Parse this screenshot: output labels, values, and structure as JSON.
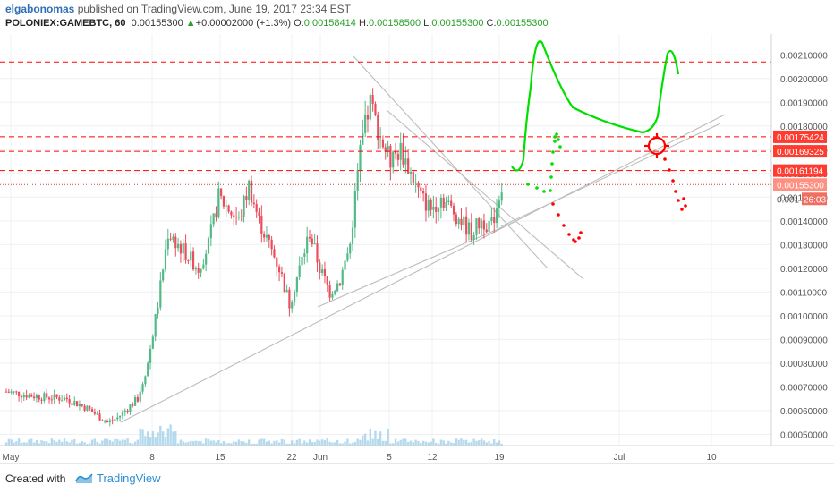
{
  "header": {
    "user": "elgabonomas",
    "published": " published on TradingView.com, June 19, 2017 23:34 EST",
    "symbol": "POLONIEX:GAMEBTC, 60",
    "last": "0.00155300",
    "change_arrow": "▲",
    "change": "+0.00002000 (+1.3%)",
    "o_label": "O:",
    "o_value": "0.00158414",
    "h_label": "H:",
    "h_value": "0.00158500",
    "l_label": "L:",
    "l_value": "0.00155300",
    "c_label": "C:",
    "c_value": "0.00155300"
  },
  "footer": {
    "created_with": "Created with",
    "brand": "TradingView"
  },
  "colors": {
    "up": "#53b987",
    "down": "#eb4d5c",
    "volume": "#a8d4ea",
    "annot_red": "#ff0000",
    "annot_green": "#00e000",
    "trendline": "#bdbdbd",
    "price_label_bg": "#ff3b30",
    "grid": "#eef0f3"
  },
  "chart_data": {
    "type": "candlestick",
    "title": "",
    "xlabel": "",
    "ylabel": "",
    "x_ticks": [
      "May",
      "8",
      "15",
      "22",
      "Jun",
      "5",
      "12",
      "19",
      "Jul",
      "10"
    ],
    "y_ticks": [
      "0.00210000",
      "0.00200000",
      "0.00190000",
      "0.00180000",
      "0.00170000",
      "0.00160000",
      "0.00150000",
      "0.00140000",
      "0.00130000",
      "0.00120000",
      "0.00110000",
      "0.00100000",
      "0.00090000",
      "0.00080000",
      "0.00070000",
      "0.00060000",
      "0.00050000"
    ],
    "ylim": [
      0.00043,
      0.00215
    ],
    "grid": true,
    "price_series_day": [
      {
        "day": 0,
        "price": 0.00068
      },
      {
        "day": 3,
        "price": 0.00066
      },
      {
        "day": 6,
        "price": 0.00065
      },
      {
        "day": 8,
        "price": 0.00061
      },
      {
        "day": 10,
        "price": 0.00055
      },
      {
        "day": 11,
        "price": 0.00057
      },
      {
        "day": 13,
        "price": 0.00065
      },
      {
        "day": 14,
        "price": 0.0008
      },
      {
        "day": 15,
        "price": 0.00105
      },
      {
        "day": 16,
        "price": 0.00135
      },
      {
        "day": 17,
        "price": 0.0013
      },
      {
        "day": 18,
        "price": 0.00125
      },
      {
        "day": 19,
        "price": 0.0012
      },
      {
        "day": 20,
        "price": 0.0013
      },
      {
        "day": 21,
        "price": 0.0015
      },
      {
        "day": 22,
        "price": 0.00145
      },
      {
        "day": 23,
        "price": 0.0014
      },
      {
        "day": 24,
        "price": 0.00155
      },
      {
        "day": 25,
        "price": 0.0014
      },
      {
        "day": 26,
        "price": 0.0013
      },
      {
        "day": 27,
        "price": 0.0012
      },
      {
        "day": 28,
        "price": 0.00105
      },
      {
        "day": 29,
        "price": 0.0012
      },
      {
        "day": 30,
        "price": 0.00135
      },
      {
        "day": 31,
        "price": 0.0012
      },
      {
        "day": 32,
        "price": 0.0011
      },
      {
        "day": 33,
        "price": 0.00115
      },
      {
        "day": 34,
        "price": 0.0013
      },
      {
        "day": 35,
        "price": 0.0017
      },
      {
        "day": 36,
        "price": 0.0019
      },
      {
        "day": 37,
        "price": 0.00175
      },
      {
        "day": 38,
        "price": 0.00165
      },
      {
        "day": 39,
        "price": 0.0017
      },
      {
        "day": 40,
        "price": 0.0016
      },
      {
        "day": 41,
        "price": 0.0015
      },
      {
        "day": 42,
        "price": 0.00145
      },
      {
        "day": 43,
        "price": 0.0015
      },
      {
        "day": 44,
        "price": 0.00145
      },
      {
        "day": 45,
        "price": 0.0014
      },
      {
        "day": 46,
        "price": 0.00135
      },
      {
        "day": 47,
        "price": 0.0014
      },
      {
        "day": 48,
        "price": 0.00138
      },
      {
        "day": 49,
        "price": 0.00155
      }
    ],
    "dashed_levels": [
      0.00207,
      0.00175424,
      0.00169325,
      0.00161194
    ],
    "dotted_level": 0.001553,
    "price_labels": [
      {
        "value": "0.00175424",
        "price": 0.00175424
      },
      {
        "value": "0.00169325",
        "price": 0.00169325
      },
      {
        "value": "0.00161194",
        "price": 0.00161194
      },
      {
        "value": "0.00155300",
        "price": 0.001553
      }
    ],
    "partial_label": "0.001",
    "countdown": "26:03"
  }
}
